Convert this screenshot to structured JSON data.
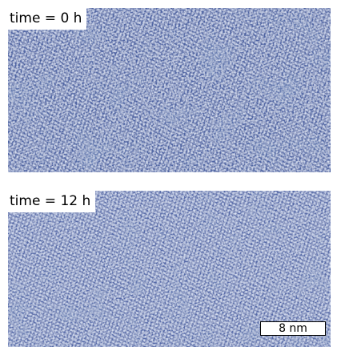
{
  "panels": [
    {
      "label": "time = 0 h"
    },
    {
      "label": "time = 12 h"
    }
  ],
  "scale_bar": {
    "label": "8 nm"
  },
  "colors": {
    "lattice_base": "#4d63a3",
    "lattice_light": "#c3cde8",
    "lattice_dark": "#2e427e",
    "label_background": "#ffffff"
  }
}
